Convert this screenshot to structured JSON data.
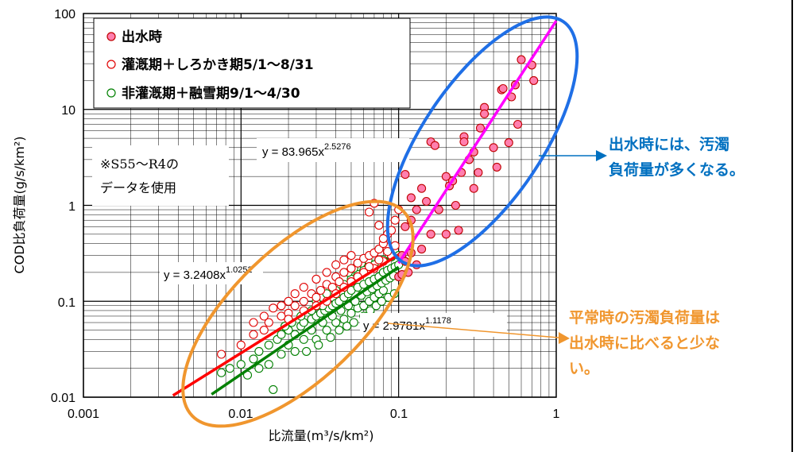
{
  "chart_data": {
    "type": "scatter",
    "xlabel": "比流量(m³/s/km²)",
    "ylabel": "COD比負荷量(g/s/km²)",
    "x_scale": "log",
    "y_scale": "log",
    "xlim": [
      0.001,
      1
    ],
    "ylim": [
      0.01,
      100
    ],
    "x_ticks": [
      "0.001",
      "0.01",
      "0.1",
      "1"
    ],
    "y_ticks": [
      "0.01",
      "0.1",
      "1",
      "10",
      "100"
    ],
    "grid": true,
    "legend_position": "top-left",
    "series": [
      {
        "name": "出水時",
        "marker": "filled-circle",
        "color": "#ff7fae",
        "edge_color": "#c00000",
        "points": [
          [
            0.105,
            0.3
          ],
          [
            0.11,
            0.26
          ],
          [
            0.12,
            0.32
          ],
          [
            0.115,
            0.2
          ],
          [
            0.13,
            0.24
          ],
          [
            0.1,
            0.18
          ],
          [
            0.105,
            0.19
          ],
          [
            0.11,
            0.6
          ],
          [
            0.12,
            0.7
          ],
          [
            0.13,
            0.9
          ],
          [
            0.14,
            1.5
          ],
          [
            0.15,
            1.1
          ],
          [
            0.11,
            2.1
          ],
          [
            0.12,
            1.2
          ],
          [
            0.16,
            4.6
          ],
          [
            0.17,
            4.2
          ],
          [
            0.2,
            2.0
          ],
          [
            0.21,
            1.6
          ],
          [
            0.22,
            1.8
          ],
          [
            0.23,
            1.0
          ],
          [
            0.25,
            2.2
          ],
          [
            0.26,
            5.2
          ],
          [
            0.26,
            4.6
          ],
          [
            0.28,
            3.0
          ],
          [
            0.3,
            1.5
          ],
          [
            0.32,
            2.2
          ],
          [
            0.33,
            6.4
          ],
          [
            0.35,
            10.5
          ],
          [
            0.35,
            9.0
          ],
          [
            0.4,
            4.0
          ],
          [
            0.45,
            16.0
          ],
          [
            0.46,
            16.5
          ],
          [
            0.5,
            4.5
          ],
          [
            0.52,
            13.5
          ],
          [
            0.55,
            18.0
          ],
          [
            0.57,
            7.0
          ],
          [
            0.6,
            33.0
          ],
          [
            0.7,
            29.0
          ],
          [
            0.72,
            20.0
          ],
          [
            0.3,
            3.6
          ],
          [
            0.24,
            0.55
          ],
          [
            0.2,
            0.5
          ],
          [
            0.42,
            2.5
          ],
          [
            0.18,
            0.9
          ],
          [
            0.16,
            0.5
          ],
          [
            0.14,
            0.35
          ]
        ]
      },
      {
        "name": "灌漑期＋しろかき期5/1～8/31",
        "marker": "open-circle",
        "color": "#e00000",
        "points": [
          [
            0.0075,
            0.028
          ],
          [
            0.01,
            0.035
          ],
          [
            0.012,
            0.045
          ],
          [
            0.014,
            0.05
          ],
          [
            0.015,
            0.06
          ],
          [
            0.018,
            0.07
          ],
          [
            0.02,
            0.075
          ],
          [
            0.022,
            0.09
          ],
          [
            0.025,
            0.1
          ],
          [
            0.028,
            0.12
          ],
          [
            0.03,
            0.11
          ],
          [
            0.032,
            0.13
          ],
          [
            0.035,
            0.15
          ],
          [
            0.038,
            0.14
          ],
          [
            0.04,
            0.18
          ],
          [
            0.042,
            0.16
          ],
          [
            0.045,
            0.2
          ],
          [
            0.05,
            0.22
          ],
          [
            0.055,
            0.25
          ],
          [
            0.06,
            0.28
          ],
          [
            0.065,
            0.3
          ],
          [
            0.07,
            0.32
          ],
          [
            0.075,
            0.35
          ],
          [
            0.08,
            0.4
          ],
          [
            0.085,
            0.5
          ],
          [
            0.09,
            0.55
          ],
          [
            0.095,
            0.7
          ],
          [
            0.1,
            0.9
          ],
          [
            0.065,
            0.85
          ],
          [
            0.07,
            1.05
          ],
          [
            0.075,
            0.62
          ],
          [
            0.08,
            0.45
          ],
          [
            0.05,
            0.3
          ],
          [
            0.045,
            0.27
          ],
          [
            0.04,
            0.24
          ],
          [
            0.035,
            0.2
          ],
          [
            0.03,
            0.17
          ],
          [
            0.025,
            0.14
          ],
          [
            0.022,
            0.12
          ],
          [
            0.02,
            0.1
          ],
          [
            0.018,
            0.09
          ],
          [
            0.016,
            0.085
          ],
          [
            0.014,
            0.07
          ],
          [
            0.012,
            0.06
          ],
          [
            0.02,
            0.065
          ],
          [
            0.025,
            0.08
          ],
          [
            0.03,
            0.09
          ],
          [
            0.035,
            0.1
          ],
          [
            0.04,
            0.12
          ],
          [
            0.045,
            0.14
          ],
          [
            0.05,
            0.16
          ],
          [
            0.06,
            0.2
          ],
          [
            0.07,
            0.22
          ],
          [
            0.08,
            0.26
          ],
          [
            0.09,
            0.3
          ],
          [
            0.055,
            0.18
          ],
          [
            0.065,
            0.23
          ],
          [
            0.075,
            0.27
          ],
          [
            0.085,
            0.33
          ],
          [
            0.095,
            0.38
          ]
        ]
      },
      {
        "name": "非灌漑期＋融雪期9/1～4/30",
        "marker": "open-circle",
        "color": "#008000",
        "points": [
          [
            0.0075,
            0.018
          ],
          [
            0.0085,
            0.02
          ],
          [
            0.01,
            0.022
          ],
          [
            0.012,
            0.025
          ],
          [
            0.013,
            0.03
          ],
          [
            0.015,
            0.035
          ],
          [
            0.016,
            0.012
          ],
          [
            0.017,
            0.04
          ],
          [
            0.018,
            0.045
          ],
          [
            0.02,
            0.05
          ],
          [
            0.022,
            0.045
          ],
          [
            0.024,
            0.055
          ],
          [
            0.025,
            0.06
          ],
          [
            0.028,
            0.065
          ],
          [
            0.03,
            0.07
          ],
          [
            0.032,
            0.075
          ],
          [
            0.034,
            0.08
          ],
          [
            0.036,
            0.085
          ],
          [
            0.038,
            0.09
          ],
          [
            0.04,
            0.095
          ],
          [
            0.042,
            0.1
          ],
          [
            0.045,
            0.11
          ],
          [
            0.048,
            0.12
          ],
          [
            0.05,
            0.13
          ],
          [
            0.055,
            0.14
          ],
          [
            0.06,
            0.15
          ],
          [
            0.065,
            0.16
          ],
          [
            0.07,
            0.17
          ],
          [
            0.075,
            0.18
          ],
          [
            0.08,
            0.2
          ],
          [
            0.085,
            0.21
          ],
          [
            0.09,
            0.22
          ],
          [
            0.095,
            0.23
          ],
          [
            0.1,
            0.24
          ],
          [
            0.03,
            0.04
          ],
          [
            0.035,
            0.05
          ],
          [
            0.04,
            0.06
          ],
          [
            0.045,
            0.065
          ],
          [
            0.05,
            0.075
          ],
          [
            0.055,
            0.085
          ],
          [
            0.06,
            0.09
          ],
          [
            0.065,
            0.1
          ],
          [
            0.07,
            0.11
          ],
          [
            0.075,
            0.12
          ],
          [
            0.08,
            0.13
          ],
          [
            0.02,
            0.035
          ],
          [
            0.025,
            0.04
          ],
          [
            0.022,
            0.03
          ],
          [
            0.028,
            0.05
          ],
          [
            0.033,
            0.06
          ],
          [
            0.038,
            0.07
          ],
          [
            0.043,
            0.08
          ],
          [
            0.048,
            0.09
          ],
          [
            0.053,
            0.1
          ],
          [
            0.058,
            0.115
          ],
          [
            0.063,
            0.125
          ],
          [
            0.068,
            0.135
          ],
          [
            0.073,
            0.145
          ],
          [
            0.078,
            0.155
          ],
          [
            0.083,
            0.165
          ],
          [
            0.088,
            0.175
          ],
          [
            0.093,
            0.185
          ],
          [
            0.04,
            0.13
          ],
          [
            0.045,
            0.15
          ],
          [
            0.05,
            0.17
          ],
          [
            0.035,
            0.12
          ],
          [
            0.03,
            0.1
          ],
          [
            0.055,
            0.19
          ],
          [
            0.06,
            0.21
          ],
          [
            0.07,
            0.24
          ],
          [
            0.08,
            0.27
          ],
          [
            0.09,
            0.29
          ],
          [
            0.1,
            0.3
          ],
          [
            0.018,
            0.028
          ],
          [
            0.015,
            0.022
          ],
          [
            0.013,
            0.02
          ],
          [
            0.011,
            0.017
          ],
          [
            0.026,
            0.03
          ],
          [
            0.031,
            0.035
          ],
          [
            0.037,
            0.042
          ],
          [
            0.042,
            0.05
          ],
          [
            0.047,
            0.055
          ],
          [
            0.052,
            0.06
          ],
          [
            0.06,
            0.07
          ],
          [
            0.066,
            0.08
          ],
          [
            0.072,
            0.09
          ],
          [
            0.078,
            0.1
          ],
          [
            0.086,
            0.11
          ],
          [
            0.094,
            0.12
          ],
          [
            0.048,
            0.2
          ],
          [
            0.052,
            0.22
          ],
          [
            0.058,
            0.25
          ],
          [
            0.064,
            0.27
          ],
          [
            0.033,
            0.09
          ],
          [
            0.028,
            0.08
          ],
          [
            0.024,
            0.07
          ],
          [
            0.021,
            0.06
          ],
          [
            0.019,
            0.055
          ]
        ]
      }
    ],
    "trendlines": [
      {
        "label": "y = 83.965x",
        "exp": "2.5276",
        "a": 83.965,
        "b": 2.5276,
        "color": "#ff00ff",
        "xrange": [
          0.1,
          1
        ]
      },
      {
        "label": "y = 3.2408x",
        "exp": "1.0252",
        "a": 3.2408,
        "b": 1.0252,
        "color": "#ff0000",
        "xrange": [
          0.0037,
          0.1
        ]
      },
      {
        "label": "y = 2.9781x",
        "exp": "1.1178",
        "a": 2.9781,
        "b": 1.1178,
        "color": "#008000",
        "xrange": [
          0.0065,
          0.1
        ]
      }
    ],
    "note": [
      "※S55～R4の",
      "データを使用"
    ],
    "callouts": [
      {
        "lines": [
          "出水時には、汚濁",
          "負荷量が多くなる。"
        ],
        "color": "#0070c0"
      },
      {
        "lines": [
          "平常時の汚濁負荷量は",
          "出水時に比べると少な",
          "い。"
        ],
        "color": "#f0962e"
      }
    ]
  }
}
